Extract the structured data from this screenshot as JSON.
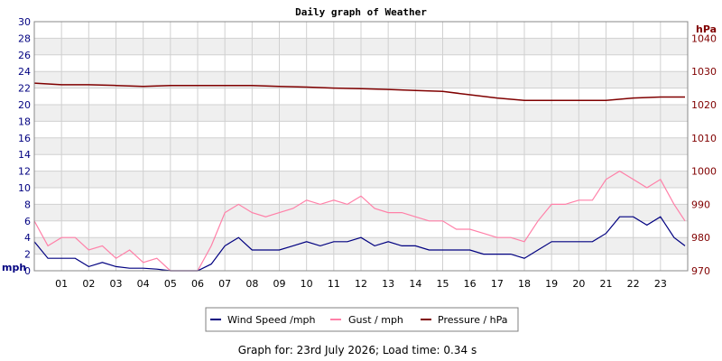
{
  "chart_data": {
    "type": "line",
    "title": "Daily graph of Weather",
    "left_axis": {
      "unit": "mph",
      "ylim": [
        0,
        30
      ],
      "ticks": [
        0,
        2,
        4,
        6,
        8,
        10,
        12,
        14,
        16,
        18,
        20,
        22,
        24,
        26,
        28,
        30
      ]
    },
    "right_axis": {
      "unit": "hPa",
      "ylim": [
        970,
        1045
      ],
      "ticks": [
        970,
        980,
        990,
        1000,
        1010,
        1020,
        1030,
        1040
      ]
    },
    "x_ticks": [
      "01",
      "02",
      "03",
      "04",
      "05",
      "06",
      "07",
      "08",
      "09",
      "10",
      "11",
      "12",
      "13",
      "14",
      "15",
      "16",
      "17",
      "18",
      "19",
      "20",
      "21",
      "22",
      "23"
    ],
    "xlim": [
      0,
      24
    ],
    "grid": true,
    "legend_position": "bottom-center",
    "series": [
      {
        "name": "Wind Speed /mph",
        "color": "#000080",
        "axis": "left",
        "x": [
          0,
          0.5,
          1,
          1.5,
          2,
          2.5,
          3,
          3.5,
          4,
          4.5,
          5,
          5.5,
          6,
          6.5,
          7,
          7.5,
          8,
          8.5,
          9,
          9.5,
          10,
          10.5,
          11,
          11.5,
          12,
          12.5,
          13,
          13.5,
          14,
          14.5,
          15,
          15.5,
          16,
          16.5,
          17,
          17.5,
          18,
          18.5,
          19,
          19.5,
          20,
          20.5,
          21,
          21.5,
          22,
          22.5,
          23,
          23.5,
          23.9
        ],
        "y": [
          3.5,
          1.5,
          1.5,
          1.5,
          0.5,
          1,
          0.5,
          0.3,
          0.3,
          0.2,
          0,
          0,
          0,
          0.8,
          3,
          4,
          2.5,
          2.5,
          2.5,
          3,
          3.5,
          3,
          3.5,
          3.5,
          4,
          3,
          3.5,
          3,
          3,
          2.5,
          2.5,
          2.5,
          2.5,
          2,
          2,
          2,
          1.5,
          2.5,
          3.5,
          3.5,
          3.5,
          3.5,
          4.5,
          6.5,
          6.5,
          5.5,
          6.5,
          4,
          3
        ]
      },
      {
        "name": "Gust / mph",
        "color": "#ff80a8",
        "axis": "left",
        "x": [
          0,
          0.5,
          1,
          1.5,
          2,
          2.5,
          3,
          3.5,
          4,
          4.5,
          5,
          5.5,
          6,
          6.5,
          7,
          7.5,
          8,
          8.5,
          9,
          9.5,
          10,
          10.5,
          11,
          11.5,
          12,
          12.5,
          13,
          13.5,
          14,
          14.5,
          15,
          15.5,
          16,
          16.5,
          17,
          17.5,
          18,
          18.5,
          19,
          19.5,
          20,
          20.5,
          21,
          21.5,
          22,
          22.5,
          23,
          23.5,
          23.9
        ],
        "y": [
          6,
          3,
          4,
          4,
          2.5,
          3,
          1.5,
          2.5,
          1,
          1.5,
          0,
          0,
          0,
          3,
          7,
          8,
          7,
          6.5,
          7,
          7.5,
          8.5,
          8,
          8.5,
          8,
          9,
          7.5,
          7,
          7,
          6.5,
          6,
          6,
          5,
          5,
          4.5,
          4,
          4,
          3.5,
          6,
          8,
          8,
          8.5,
          8.5,
          11,
          12,
          11,
          10,
          11,
          8,
          6
        ]
      },
      {
        "name": "Pressure / hPa",
        "color": "#800000",
        "axis": "right",
        "x": [
          0,
          1,
          2,
          3,
          4,
          5,
          6,
          7,
          8,
          9,
          10,
          11,
          12,
          13,
          14,
          15,
          16,
          17,
          18,
          19,
          20,
          21,
          22,
          23,
          23.9
        ],
        "y": [
          1026.5,
          1026,
          1026,
          1025.8,
          1025.5,
          1025.8,
          1025.8,
          1025.8,
          1025.8,
          1025.5,
          1025.3,
          1025,
          1024.8,
          1024.6,
          1024.3,
          1024,
          1023,
          1022,
          1021.3,
          1021.3,
          1021.3,
          1021.3,
          1022,
          1022.3,
          1022.3
        ]
      }
    ]
  },
  "footer": {
    "graph_for_label": "Graph for:",
    "date": "23rd July 2026",
    "load_time_label": "Load time:",
    "load_time": "0.34 s"
  }
}
